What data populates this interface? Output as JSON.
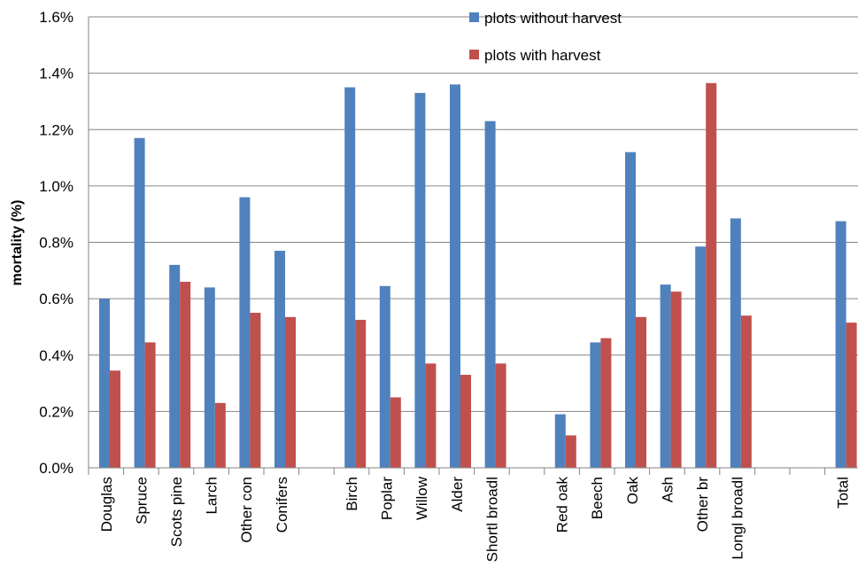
{
  "chart_data": {
    "type": "bar",
    "ylabel": "mortality (%)",
    "xlabel": "",
    "title": "",
    "ylim": [
      0,
      1.6
    ],
    "yticks": [
      "0.0%",
      "0.2%",
      "0.4%",
      "0.6%",
      "0.8%",
      "1.0%",
      "1.2%",
      "1.4%",
      "1.6%"
    ],
    "grid": true,
    "legend_position": "top-right",
    "categories": [
      "Douglas",
      "Spruce",
      "Scots pine",
      "Larch",
      "Other con",
      "Conifers",
      "",
      "Birch",
      "Poplar",
      "Willow",
      "Alder",
      "Shortl broadl",
      "",
      "Red oak",
      "Beech",
      "Oak",
      "Ash",
      "Other br",
      "Longl broadl",
      "",
      "",
      "Total"
    ],
    "series": [
      {
        "name": "plots without harvest",
        "color": "#4F81BD",
        "values": [
          0.6,
          1.17,
          0.72,
          0.64,
          0.96,
          0.77,
          null,
          1.35,
          0.645,
          1.33,
          1.36,
          1.23,
          null,
          0.19,
          0.445,
          1.12,
          0.65,
          0.785,
          0.885,
          null,
          null,
          0.875
        ]
      },
      {
        "name": "plots with harvest",
        "color": "#C0504D",
        "values": [
          0.345,
          0.445,
          0.66,
          0.23,
          0.55,
          0.535,
          null,
          0.525,
          0.25,
          0.37,
          0.33,
          0.37,
          null,
          0.115,
          0.46,
          0.535,
          0.625,
          1.365,
          0.54,
          null,
          null,
          0.515
        ]
      }
    ]
  }
}
